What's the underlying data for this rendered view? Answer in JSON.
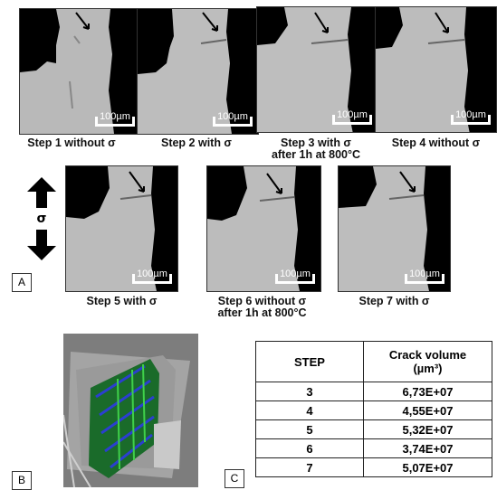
{
  "panels": [
    {
      "id": "step1",
      "caption": "Step 1 without σ",
      "scale": "100µm"
    },
    {
      "id": "step2",
      "caption": "Step 2 with σ",
      "scale": "100µm"
    },
    {
      "id": "step3",
      "caption": "Step 3 with σ after 1h at 800°C",
      "scale": "100µm"
    },
    {
      "id": "step4",
      "caption": "Step 4 without σ",
      "scale": "100µm"
    },
    {
      "id": "step5",
      "caption": "Step 5 with σ",
      "scale": "100µm"
    },
    {
      "id": "step6",
      "caption": "Step 6 without σ after 1h at 800°C",
      "scale": "100µm"
    },
    {
      "id": "step7",
      "caption": "Step 7 with σ",
      "scale": "100µm"
    }
  ],
  "captions": {
    "step1": "Step 1 without σ",
    "step2": "Step 2 with σ",
    "step3_line1": "Step 3 with σ",
    "step3_line2": "after 1h at 800°C",
    "step4": "Step 4 without σ",
    "step5": "Step 5 with σ",
    "step6_line1": "Step 6 without σ",
    "step6_line2": "after 1h at 800°C",
    "step7": "Step 7 with σ"
  },
  "scale_label": "100µm",
  "sigma_label": "σ",
  "labels": {
    "a": "A",
    "b": "B",
    "c": "C"
  },
  "table": {
    "header_step": "STEP",
    "header_volume_line1": "Crack volume",
    "header_volume_line2": "(µm³)",
    "rows": [
      {
        "step": "3",
        "volume": "6,73E+07"
      },
      {
        "step": "4",
        "volume": "4,55E+07"
      },
      {
        "step": "5",
        "volume": "5,32E+07"
      },
      {
        "step": "6",
        "volume": "3,74E+07"
      },
      {
        "step": "7",
        "volume": "5,07E+07"
      }
    ]
  }
}
